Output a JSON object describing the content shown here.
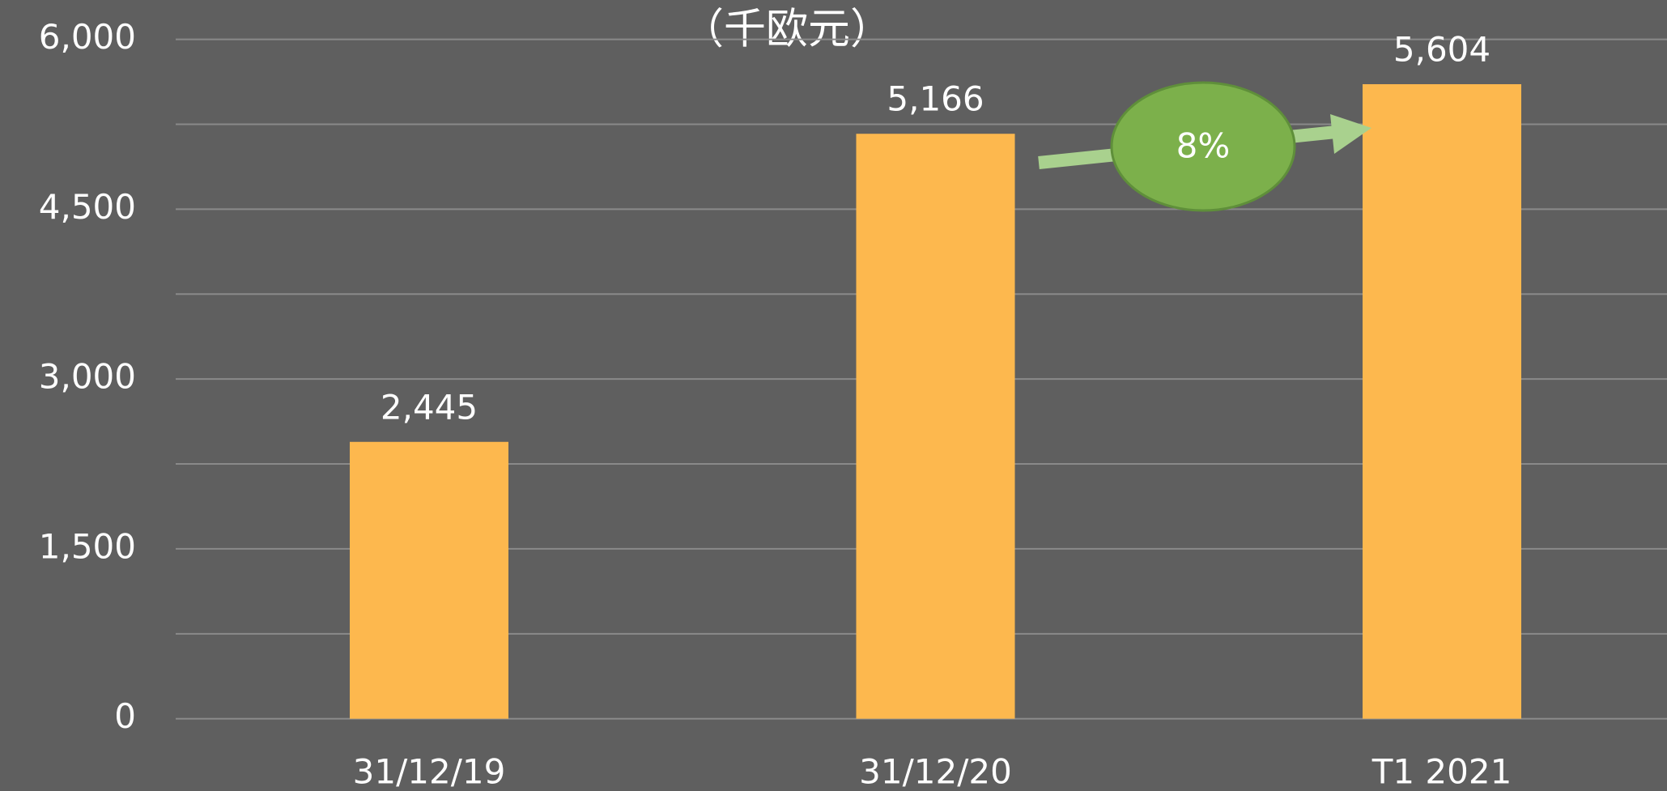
{
  "chart_data": {
    "type": "bar",
    "title": "（千欧元）",
    "categories": [
      "31/12/19",
      "31/12/20",
      "T1 2021"
    ],
    "values": [
      2445,
      5166,
      5604
    ],
    "value_labels": [
      "2,445",
      "5,166",
      "5,604"
    ],
    "color": "#fdb84e",
    "ylim": [
      0,
      6000
    ],
    "yticks": [
      0,
      {
        "value": 1500,
        "label": "1,500"
      },
      {
        "value": 3000,
        "label": "3,000"
      },
      {
        "value": 4500,
        "label": "4,500"
      },
      {
        "value": 6000,
        "label": "6,000"
      }
    ],
    "y_minor_ticks": [
      750,
      2250,
      3750,
      5250
    ],
    "grid": true,
    "annotation": "8%"
  }
}
